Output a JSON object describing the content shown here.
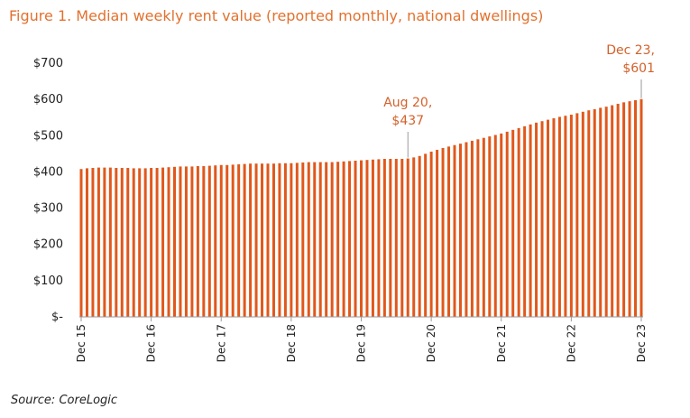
{
  "title": "Figure 1. Median weekly rent value (reported monthly, national dwellings)",
  "source": "Source: CoreLogic",
  "colors": {
    "bars": "#e0581c",
    "title": "#e2712f",
    "annotation": "#d4612a"
  },
  "chart_data": {
    "type": "bar",
    "ylim": [
      0,
      700
    ],
    "y_ticks": [
      0,
      100,
      200,
      300,
      400,
      500,
      600,
      700
    ],
    "y_tick_labels": [
      "$-",
      "$100",
      "$200",
      "$300",
      "$400",
      "$500",
      "$600",
      "$700"
    ],
    "x_tick_labels": [
      "Dec 15",
      "Dec 16",
      "Dec 17",
      "Dec 18",
      "Dec 19",
      "Dec 20",
      "Dec 21",
      "Dec 22",
      "Dec 23"
    ],
    "x_tick_index": [
      0,
      12,
      24,
      36,
      48,
      60,
      72,
      84,
      96
    ],
    "grid": false,
    "legend": "none",
    "categories": [
      "Dec 15",
      "Jan 16",
      "Feb 16",
      "Mar 16",
      "Apr 16",
      "May 16",
      "Jun 16",
      "Jul 16",
      "Aug 16",
      "Sep 16",
      "Oct 16",
      "Nov 16",
      "Dec 16",
      "Jan 17",
      "Feb 17",
      "Mar 17",
      "Apr 17",
      "May 17",
      "Jun 17",
      "Jul 17",
      "Aug 17",
      "Sep 17",
      "Oct 17",
      "Nov 17",
      "Dec 17",
      "Jan 18",
      "Feb 18",
      "Mar 18",
      "Apr 18",
      "May 18",
      "Jun 18",
      "Jul 18",
      "Aug 18",
      "Sep 18",
      "Oct 18",
      "Nov 18",
      "Dec 18",
      "Jan 19",
      "Feb 19",
      "Mar 19",
      "Apr 19",
      "May 19",
      "Jun 19",
      "Jul 19",
      "Aug 19",
      "Sep 19",
      "Oct 19",
      "Nov 19",
      "Dec 19",
      "Jan 20",
      "Feb 20",
      "Mar 20",
      "Apr 20",
      "May 20",
      "Jun 20",
      "Jul 20",
      "Aug 20",
      "Sep 20",
      "Oct 20",
      "Nov 20",
      "Dec 20",
      "Jan 21",
      "Feb 21",
      "Mar 21",
      "Apr 21",
      "May 21",
      "Jun 21",
      "Jul 21",
      "Aug 21",
      "Sep 21",
      "Oct 21",
      "Nov 21",
      "Dec 21",
      "Jan 22",
      "Feb 22",
      "Mar 22",
      "Apr 22",
      "May 22",
      "Jun 22",
      "Jul 22",
      "Aug 22",
      "Sep 22",
      "Oct 22",
      "Nov 22",
      "Dec 22",
      "Jan 23",
      "Feb 23",
      "Mar 23",
      "Apr 23",
      "May 23",
      "Jun 23",
      "Jul 23",
      "Aug 23",
      "Sep 23",
      "Oct 23",
      "Nov 23",
      "Dec 23"
    ],
    "values": [
      408,
      410,
      411,
      412,
      412,
      412,
      411,
      411,
      411,
      410,
      410,
      410,
      411,
      411,
      412,
      413,
      414,
      415,
      415,
      415,
      416,
      416,
      417,
      418,
      419,
      419,
      420,
      421,
      422,
      423,
      423,
      423,
      423,
      423,
      424,
      424,
      424,
      425,
      426,
      427,
      427,
      427,
      427,
      427,
      428,
      429,
      430,
      431,
      432,
      433,
      434,
      435,
      436,
      436,
      436,
      436,
      437,
      440,
      444,
      450,
      456,
      461,
      466,
      470,
      474,
      478,
      482,
      486,
      490,
      494,
      498,
      502,
      506,
      511,
      516,
      521,
      526,
      531,
      536,
      540,
      544,
      548,
      552,
      555,
      558,
      562,
      566,
      570,
      573,
      577,
      580,
      584,
      588,
      592,
      595,
      598,
      601
    ],
    "annotations": [
      {
        "index": 56,
        "lines": [
          "Aug 20,",
          "$437"
        ]
      },
      {
        "index": 96,
        "lines": [
          "Dec 23,",
          "$601"
        ]
      }
    ]
  }
}
